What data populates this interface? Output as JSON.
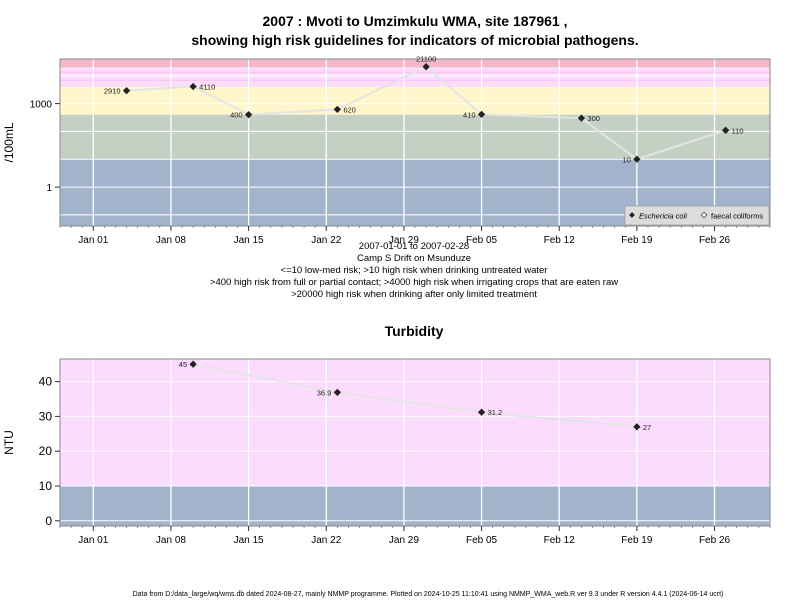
{
  "title_line1": "2007 : Mvoti to Umzimkulu WMA, site 187961 ,",
  "title_line2": "showing high risk guidelines for indicators of microbial pathogens.",
  "chart_data": [
    {
      "type": "line",
      "ylabel": "/100mL",
      "yscale": "log",
      "ylim": [
        0.04,
        40000
      ],
      "yticks": [
        {
          "value": 1,
          "label": "1"
        },
        {
          "value": 1000,
          "label": "1000"
        }
      ],
      "xlim": [
        "2006-12-29",
        "2007-03-03"
      ],
      "xticks": [
        {
          "date": "2007-01-01",
          "label": "Jan 01"
        },
        {
          "date": "2007-01-08",
          "label": "Jan 08"
        },
        {
          "date": "2007-01-15",
          "label": "Jan 15"
        },
        {
          "date": "2007-01-22",
          "label": "Jan 22"
        },
        {
          "date": "2007-01-29",
          "label": "Jan 29"
        },
        {
          "date": "2007-02-05",
          "label": "Feb 05"
        },
        {
          "date": "2007-02-12",
          "label": "Feb 12"
        },
        {
          "date": "2007-02-19",
          "label": "Feb 19"
        },
        {
          "date": "2007-02-26",
          "label": "Feb 26"
        }
      ],
      "bands": [
        {
          "from": 0.04,
          "to": 10,
          "color": "#a2b4cc"
        },
        {
          "from": 10,
          "to": 400,
          "color": "#c5d0c4"
        },
        {
          "from": 400,
          "to": 4000,
          "color": "#fff6cc"
        },
        {
          "from": 4000,
          "to": 20000,
          "color": "#fcdcfc"
        },
        {
          "from": 20000,
          "to": 40000,
          "color": "#f4b8c8"
        }
      ],
      "bands_fine": [
        {
          "from": 6500,
          "to": 7200,
          "color": "#f8c4f0"
        },
        {
          "from": 12500,
          "to": 14000,
          "color": "#f8c4f0"
        }
      ],
      "series": [
        {
          "name": "Eschericia coli",
          "points": [
            {
              "date": "2007-01-04",
              "value": 2910,
              "label": "2910",
              "side": "left"
            },
            {
              "date": "2007-01-10",
              "value": 4110,
              "label": "4110",
              "side": "right"
            },
            {
              "date": "2007-01-15",
              "value": 400,
              "label": "400",
              "side": "left"
            },
            {
              "date": "2007-01-23",
              "value": 620,
              "label": "620",
              "side": "right"
            },
            {
              "date": "2007-01-31",
              "value": 21100,
              "label": "21100",
              "side": "above"
            },
            {
              "date": "2007-02-05",
              "value": 410,
              "label": "410",
              "side": "left"
            },
            {
              "date": "2007-02-14",
              "value": 300,
              "label": "300",
              "side": "right"
            },
            {
              "date": "2007-02-19",
              "value": 10,
              "label": "10",
              "side": "left"
            },
            {
              "date": "2007-02-27",
              "value": 110,
              "label": "110",
              "side": "right"
            }
          ]
        }
      ],
      "legend": {
        "position": "bottom-right",
        "items": [
          "Eschericia coli",
          "faecal coliforms"
        ]
      },
      "caption": [
        "2007-01-01 to 2007-02-28",
        "Camp S Drift on Msunduze",
        "<=10 low-med risk; >10 high risk when drinking untreated water",
        ">400 high risk from full or partial contact; >4000 high risk when irrigating crops that are eaten raw",
        ">20000 high risk when drinking after only limited treatment"
      ]
    },
    {
      "type": "line",
      "title": "Turbidity",
      "ylabel": "NTU",
      "ylim": [
        -1.5,
        46.5
      ],
      "yticks": [
        {
          "value": 0,
          "label": "0"
        },
        {
          "value": 10,
          "label": "10"
        },
        {
          "value": 20,
          "label": "20"
        },
        {
          "value": 30,
          "label": "30"
        },
        {
          "value": 40,
          "label": "40"
        }
      ],
      "xlim": [
        "2006-12-29",
        "2007-03-03"
      ],
      "xticks": [
        {
          "date": "2007-01-01",
          "label": "Jan 01"
        },
        {
          "date": "2007-01-08",
          "label": "Jan 08"
        },
        {
          "date": "2007-01-15",
          "label": "Jan 15"
        },
        {
          "date": "2007-01-22",
          "label": "Jan 22"
        },
        {
          "date": "2007-01-29",
          "label": "Jan 29"
        },
        {
          "date": "2007-02-05",
          "label": "Feb 05"
        },
        {
          "date": "2007-02-12",
          "label": "Feb 12"
        },
        {
          "date": "2007-02-19",
          "label": "Feb 19"
        },
        {
          "date": "2007-02-26",
          "label": "Feb 26"
        }
      ],
      "bands": [
        {
          "from": -1.5,
          "to": 10,
          "color": "#a2b4cc"
        },
        {
          "from": 10,
          "to": 46.5,
          "color": "#fcdcfc"
        }
      ],
      "series": [
        {
          "points": [
            {
              "date": "2007-01-10",
              "value": 45,
              "label": "45",
              "side": "left"
            },
            {
              "date": "2007-01-23",
              "value": 36.9,
              "label": "36.9",
              "side": "left"
            },
            {
              "date": "2007-02-05",
              "value": 31.2,
              "label": "31.2",
              "side": "right"
            },
            {
              "date": "2007-02-19",
              "value": 27,
              "label": "27",
              "side": "right"
            }
          ]
        }
      ]
    }
  ],
  "footer": "Data from D:/data_large/wq/wms.db dated 2024-08-27, mainly NMMP programme. Plotted on 2024-10-25 11:10:41 using NMMP_WMA_web.R ver 9.3 under R version 4.4.1 (2024-06-14 ucrt)"
}
